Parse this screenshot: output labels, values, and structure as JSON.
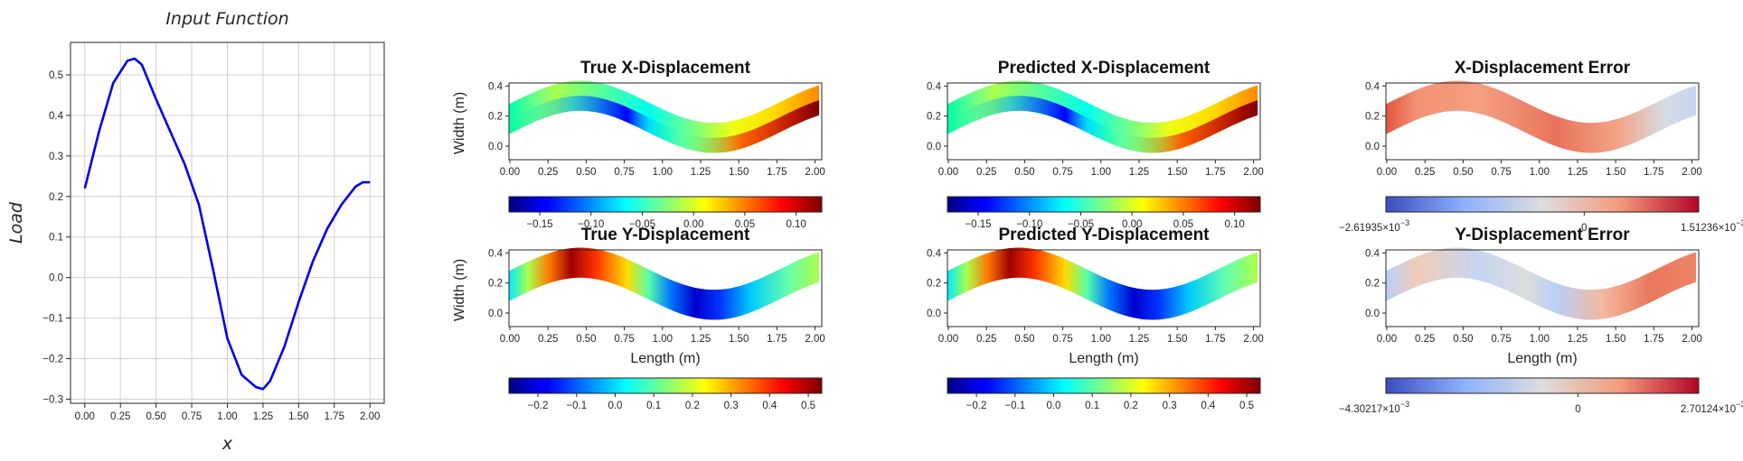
{
  "chart_data": [
    {
      "id": "input",
      "type": "line",
      "title": "Input Function",
      "xlabel": "x",
      "ylabel": "Load",
      "xlim": [
        -0.1,
        2.1
      ],
      "ylim": [
        -0.31,
        0.58
      ],
      "xticks": [
        0.0,
        0.25,
        0.5,
        0.75,
        1.0,
        1.25,
        1.5,
        1.75,
        2.0
      ],
      "xtick_labels": [
        "0.00",
        "0.25",
        "0.50",
        "0.75",
        "1.00",
        "1.25",
        "1.50",
        "1.75",
        "2.00"
      ],
      "yticks": [
        -0.3,
        -0.2,
        -0.1,
        0.0,
        0.1,
        0.2,
        0.3,
        0.4,
        0.5
      ],
      "ytick_labels": [
        "−0.3",
        "−0.2",
        "−0.1",
        "0.0",
        "0.1",
        "0.2",
        "0.3",
        "0.4",
        "0.5"
      ],
      "grid": true,
      "color": "#0000ee",
      "x": [
        0.0,
        0.1,
        0.2,
        0.3,
        0.35,
        0.4,
        0.5,
        0.6,
        0.7,
        0.8,
        0.9,
        1.0,
        1.1,
        1.2,
        1.25,
        1.3,
        1.4,
        1.5,
        1.6,
        1.7,
        1.8,
        1.9,
        1.95,
        2.0
      ],
      "y": [
        0.22,
        0.36,
        0.48,
        0.535,
        0.54,
        0.525,
        0.44,
        0.36,
        0.28,
        0.18,
        0.02,
        -0.15,
        -0.24,
        -0.27,
        -0.275,
        -0.255,
        -0.17,
        -0.06,
        0.04,
        0.12,
        0.18,
        0.225,
        0.235,
        0.235
      ]
    },
    {
      "id": "true_x",
      "type": "heatmap",
      "title": "True X-Displacement",
      "ylabel": "Width (m)",
      "xtick_labels": [
        "0.00",
        "0.25",
        "0.50",
        "0.75",
        "1.00",
        "1.25",
        "1.50",
        "1.75",
        "2.00"
      ],
      "ytick_labels": [
        "0.0",
        "0.2",
        "0.4"
      ],
      "colormap": "jet",
      "colorbar_ticks": [
        "−0.15",
        "−0.10",
        "−0.05",
        "0.00",
        "0.05",
        "0.10"
      ]
    },
    {
      "id": "pred_x",
      "type": "heatmap",
      "title": "Predicted X-Displacement",
      "xtick_labels": [
        "0.00",
        "0.25",
        "0.50",
        "0.75",
        "1.00",
        "1.25",
        "1.50",
        "1.75",
        "2.00"
      ],
      "ytick_labels": [
        "0.0",
        "0.2",
        "0.4"
      ],
      "colormap": "jet",
      "colorbar_ticks": [
        "−0.15",
        "−0.10",
        "−0.05",
        "0.00",
        "0.05",
        "0.10"
      ]
    },
    {
      "id": "err_x",
      "type": "heatmap",
      "title": "X-Displacement Error",
      "xtick_labels": [
        "0.00",
        "0.25",
        "0.50",
        "0.75",
        "1.00",
        "1.25",
        "1.50",
        "1.75",
        "2.00"
      ],
      "ytick_labels": [
        "0.0",
        "0.2",
        "0.4"
      ],
      "colormap": "coolwarm",
      "colorbar_ticks": [
        "0"
      ],
      "colorbar_min": "−2.61935",
      "colorbar_max": "1.51236",
      "colorbar_exp": "−3"
    },
    {
      "id": "true_y",
      "type": "heatmap",
      "title": "True Y-Displacement",
      "xlabel": "Length (m)",
      "ylabel": "Width (m)",
      "xtick_labels": [
        "0.00",
        "0.25",
        "0.50",
        "0.75",
        "1.00",
        "1.25",
        "1.50",
        "1.75",
        "2.00"
      ],
      "ytick_labels": [
        "0.0",
        "0.2",
        "0.4"
      ],
      "colormap": "jet",
      "colorbar_ticks": [
        "−0.2",
        "−0.1",
        "0.0",
        "0.1",
        "0.2",
        "0.3",
        "0.4",
        "0.5"
      ]
    },
    {
      "id": "pred_y",
      "type": "heatmap",
      "title": "Predicted Y-Displacement",
      "xlabel": "Length (m)",
      "xtick_labels": [
        "0.00",
        "0.25",
        "0.50",
        "0.75",
        "1.00",
        "1.25",
        "1.50",
        "1.75",
        "2.00"
      ],
      "ytick_labels": [
        "0.0",
        "0.2",
        "0.4"
      ],
      "colormap": "jet",
      "colorbar_ticks": [
        "−0.2",
        "−0.1",
        "0.0",
        "0.1",
        "0.2",
        "0.3",
        "0.4",
        "0.5"
      ]
    },
    {
      "id": "err_y",
      "type": "heatmap",
      "title": "Y-Displacement Error",
      "xlabel": "Length (m)",
      "xtick_labels": [
        "0.00",
        "0.25",
        "0.50",
        "0.75",
        "1.00",
        "1.25",
        "1.50",
        "1.75",
        "2.00"
      ],
      "ytick_labels": [
        "0.0",
        "0.2",
        "0.4"
      ],
      "colormap": "coolwarm",
      "colorbar_ticks": [
        "0"
      ],
      "colorbar_min": "−4.30217",
      "colorbar_max": "2.70124",
      "colorbar_exp": "−3"
    }
  ]
}
